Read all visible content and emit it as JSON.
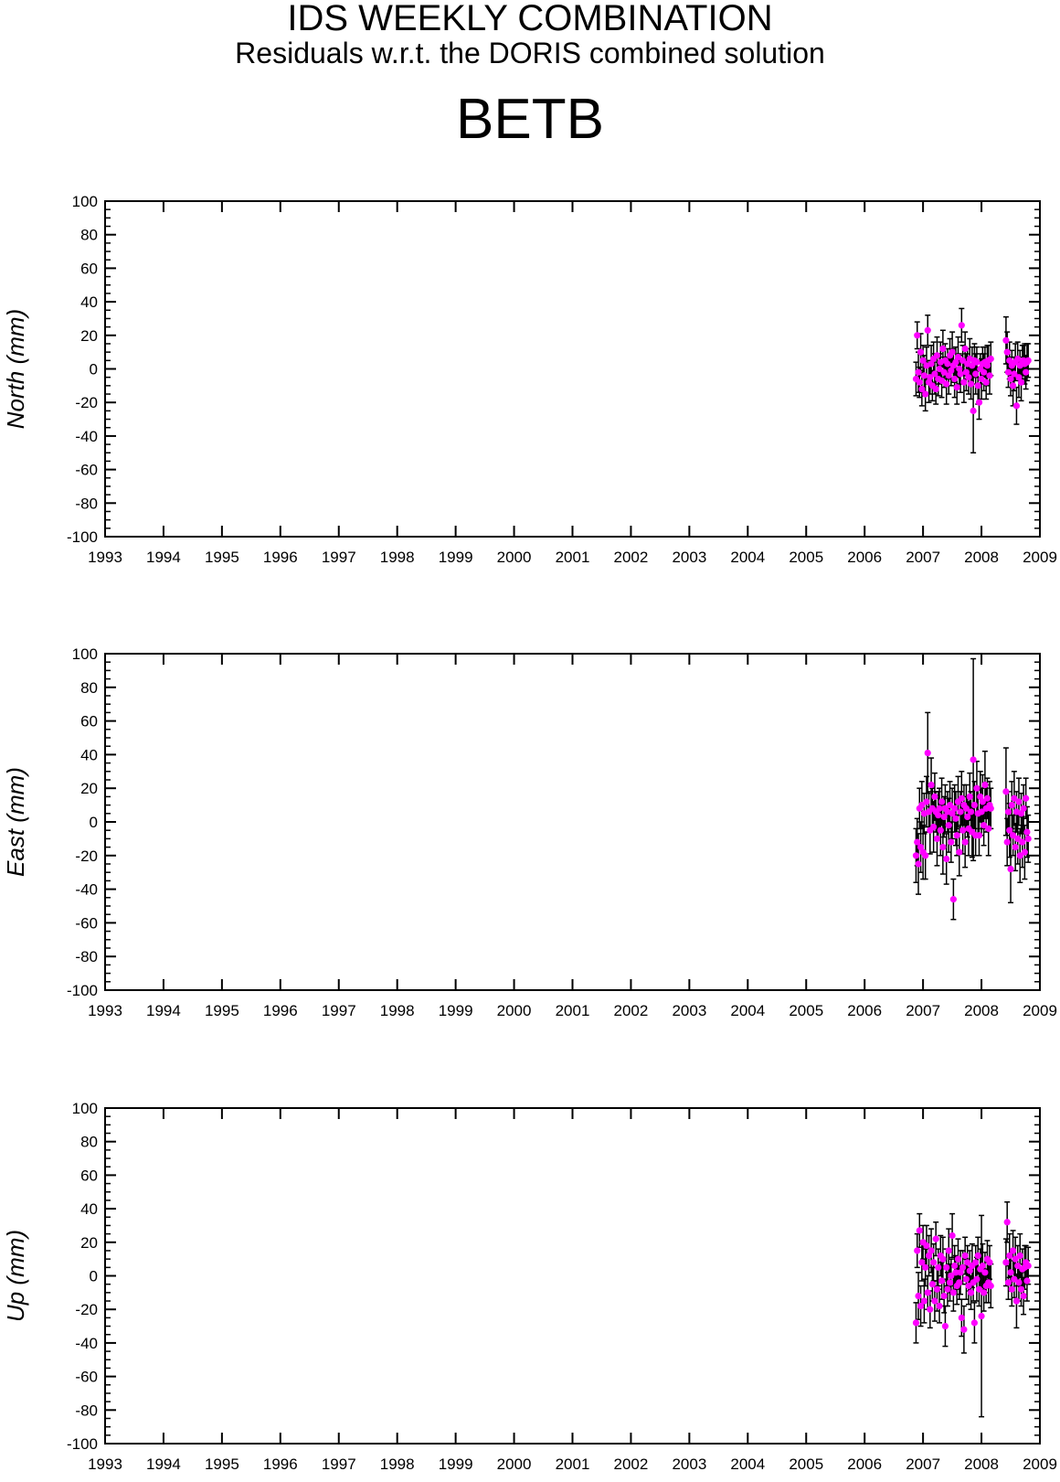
{
  "header": {
    "title": "IDS WEEKLY COMBINATION",
    "subtitle": "Residuals w.r.t. the DORIS combined solution",
    "station": "BETB"
  },
  "colors": {
    "point": "#ff00ff",
    "errorbar": "#000000",
    "axis": "#000000"
  },
  "chart_data": [
    {
      "type": "scatter",
      "ylabel": "North (mm)",
      "xlim": [
        1993,
        2009
      ],
      "ylim": [
        -100,
        100
      ],
      "x_ticks": [
        "1993",
        "1994",
        "1995",
        "1996",
        "1997",
        "1998",
        "1999",
        "2000",
        "2001",
        "2002",
        "2003",
        "2004",
        "2005",
        "2006",
        "2007",
        "2008",
        "2009"
      ],
      "y_ticks": [
        "100",
        "80",
        "60",
        "40",
        "20",
        "0",
        "-20",
        "-40",
        "-60",
        "-80",
        "-100"
      ],
      "series": [
        {
          "x": [
            2006.88,
            2006.9,
            2006.92,
            2006.94,
            2006.96,
            2006.98,
            2007.0,
            2007.02,
            2007.04,
            2007.06,
            2007.08,
            2007.1,
            2007.12,
            2007.14,
            2007.16,
            2007.18,
            2007.2,
            2007.22,
            2007.24,
            2007.26,
            2007.28,
            2007.3,
            2007.32,
            2007.34,
            2007.36,
            2007.38,
            2007.4,
            2007.42,
            2007.44,
            2007.46,
            2007.48,
            2007.5,
            2007.52,
            2007.54,
            2007.56,
            2007.58,
            2007.6,
            2007.62,
            2007.64,
            2007.66,
            2007.68,
            2007.7,
            2007.72,
            2007.74,
            2007.76,
            2007.78,
            2007.8,
            2007.82,
            2007.84,
            2007.86,
            2007.88,
            2007.9,
            2007.92,
            2007.94,
            2007.96,
            2007.98,
            2008.0,
            2008.02,
            2008.04,
            2008.06,
            2008.08,
            2008.1,
            2008.12,
            2008.14,
            2008.16,
            2008.42,
            2008.44,
            2008.46,
            2008.48,
            2008.5,
            2008.52,
            2008.54,
            2008.56,
            2008.58,
            2008.6,
            2008.62,
            2008.64,
            2008.66,
            2008.68,
            2008.7,
            2008.72,
            2008.74,
            2008.76,
            2008.78,
            2008.8
          ],
          "y": [
            -6,
            20,
            -2,
            -8,
            10,
            -12,
            5,
            -4,
            -15,
            2,
            23,
            -8,
            -5,
            3,
            -10,
            6,
            -3,
            -12,
            8,
            -6,
            0,
            4,
            -7,
            12,
            -2,
            5,
            -9,
            3,
            -4,
            8,
            -1,
            10,
            2,
            -6,
            4,
            -11,
            7,
            0,
            -3,
            26,
            5,
            -8,
            12,
            -2,
            3,
            -5,
            6,
            -9,
            2,
            -25,
            5,
            -3,
            4,
            -10,
            -20,
            0,
            -6,
            3,
            -2,
            4,
            -8,
            2,
            5,
            -4,
            6,
            17,
            10,
            -2,
            5,
            -6,
            2,
            -10,
            -3,
            4,
            -22,
            6,
            -5,
            2,
            -8,
            4,
            5,
            3,
            -2,
            4,
            5
          ],
          "err": [
            10,
            8,
            12,
            9,
            11,
            10,
            9,
            12,
            10,
            11,
            9,
            12,
            10,
            11,
            9,
            10,
            12,
            9,
            11,
            10,
            9,
            12,
            10,
            11,
            9,
            10,
            12,
            9,
            11,
            10,
            9,
            12,
            10,
            11,
            9,
            10,
            12,
            9,
            11,
            10,
            9,
            12,
            10,
            11,
            9,
            10,
            12,
            9,
            11,
            25,
            10,
            12,
            9,
            11,
            10,
            9,
            12,
            10,
            11,
            9,
            10,
            12,
            9,
            11,
            10,
            14,
            12,
            9,
            11,
            10,
            9,
            12,
            10,
            11,
            11,
            10,
            12,
            9,
            11,
            10,
            9,
            12,
            10,
            11,
            10
          ]
        }
      ]
    },
    {
      "type": "scatter",
      "ylabel": "East (mm)",
      "xlim": [
        1993,
        2009
      ],
      "ylim": [
        -100,
        100
      ],
      "x_ticks": [
        "1993",
        "1994",
        "1995",
        "1996",
        "1997",
        "1998",
        "1999",
        "2000",
        "2001",
        "2002",
        "2003",
        "2004",
        "2005",
        "2006",
        "2007",
        "2008",
        "2009"
      ],
      "y_ticks": [
        "100",
        "80",
        "60",
        "40",
        "20",
        "0",
        "-20",
        "-40",
        "-60",
        "-80",
        "-100"
      ],
      "series": [
        {
          "x": [
            2006.88,
            2006.9,
            2006.92,
            2006.94,
            2006.96,
            2006.98,
            2007.0,
            2007.02,
            2007.04,
            2007.06,
            2007.08,
            2007.1,
            2007.12,
            2007.14,
            2007.16,
            2007.18,
            2007.2,
            2007.22,
            2007.24,
            2007.26,
            2007.28,
            2007.3,
            2007.32,
            2007.34,
            2007.36,
            2007.38,
            2007.4,
            2007.42,
            2007.44,
            2007.46,
            2007.48,
            2007.5,
            2007.52,
            2007.54,
            2007.56,
            2007.58,
            2007.6,
            2007.62,
            2007.64,
            2007.66,
            2007.68,
            2007.7,
            2007.72,
            2007.74,
            2007.76,
            2007.78,
            2007.8,
            2007.82,
            2007.84,
            2007.86,
            2007.88,
            2007.9,
            2007.92,
            2007.94,
            2007.96,
            2007.98,
            2008.0,
            2008.02,
            2008.04,
            2008.06,
            2008.08,
            2008.1,
            2008.12,
            2008.14,
            2008.16,
            2008.42,
            2008.44,
            2008.46,
            2008.48,
            2008.5,
            2008.52,
            2008.54,
            2008.56,
            2008.58,
            2008.6,
            2008.62,
            2008.64,
            2008.66,
            2008.68,
            2008.7,
            2008.72,
            2008.74,
            2008.76,
            2008.78,
            2008.8
          ],
          "y": [
            -20,
            -12,
            -25,
            8,
            -15,
            10,
            -18,
            5,
            -20,
            12,
            41,
            6,
            -5,
            22,
            8,
            -3,
            15,
            6,
            -10,
            4,
            8,
            -5,
            12,
            -15,
            3,
            8,
            -22,
            6,
            -2,
            10,
            -12,
            5,
            -46,
            8,
            2,
            -8,
            12,
            -18,
            6,
            14,
            -5,
            10,
            -12,
            8,
            3,
            -4,
            15,
            6,
            -6,
            37,
            10,
            -8,
            20,
            5,
            -8,
            15,
            6,
            12,
            -2,
            22,
            8,
            14,
            -4,
            10,
            8,
            18,
            -12,
            6,
            -5,
            -28,
            10,
            -8,
            14,
            -15,
            6,
            -10,
            12,
            -20,
            5,
            -12,
            8,
            -18,
            14,
            -6,
            -10
          ],
          "err": [
            16,
            14,
            18,
            12,
            15,
            14,
            16,
            12,
            14,
            15,
            24,
            12,
            14,
            16,
            12,
            15,
            14,
            12,
            16,
            14,
            12,
            15,
            14,
            16,
            12,
            14,
            15,
            12,
            16,
            14,
            12,
            15,
            12,
            14,
            16,
            12,
            15,
            14,
            12,
            16,
            14,
            12,
            15,
            14,
            12,
            16,
            14,
            12,
            15,
            60,
            14,
            12,
            16,
            14,
            12,
            15,
            14,
            16,
            12,
            20,
            14,
            12,
            16,
            14,
            12,
            26,
            14,
            12,
            16,
            20,
            14,
            12,
            16,
            14,
            12,
            15,
            14,
            16,
            12,
            15,
            14,
            16,
            12,
            15,
            14
          ]
        }
      ]
    },
    {
      "type": "scatter",
      "ylabel": "Up (mm)",
      "xlim": [
        1993,
        2009
      ],
      "ylim": [
        -100,
        100
      ],
      "x_ticks": [
        "1993",
        "1994",
        "1995",
        "1996",
        "1997",
        "1998",
        "1999",
        "2000",
        "2001",
        "2002",
        "2003",
        "2004",
        "2005",
        "2006",
        "2007",
        "2008",
        "2009"
      ],
      "y_ticks": [
        "100",
        "80",
        "60",
        "40",
        "20",
        "0",
        "-20",
        "-40",
        "-60",
        "-80",
        "-100"
      ],
      "series": [
        {
          "x": [
            2006.88,
            2006.9,
            2006.92,
            2006.94,
            2006.96,
            2006.98,
            2007.0,
            2007.02,
            2007.04,
            2007.06,
            2007.08,
            2007.1,
            2007.12,
            2007.14,
            2007.16,
            2007.18,
            2007.2,
            2007.22,
            2007.24,
            2007.26,
            2007.28,
            2007.3,
            2007.32,
            2007.34,
            2007.36,
            2007.38,
            2007.4,
            2007.42,
            2007.44,
            2007.46,
            2007.48,
            2007.5,
            2007.52,
            2007.54,
            2007.56,
            2007.58,
            2007.6,
            2007.62,
            2007.64,
            2007.66,
            2007.68,
            2007.7,
            2007.72,
            2007.74,
            2007.76,
            2007.78,
            2007.8,
            2007.82,
            2007.84,
            2007.86,
            2007.88,
            2007.9,
            2007.92,
            2007.94,
            2007.96,
            2007.98,
            2008.0,
            2008.02,
            2008.04,
            2008.06,
            2008.08,
            2008.1,
            2008.12,
            2008.14,
            2008.16,
            2008.42,
            2008.44,
            2008.46,
            2008.48,
            2008.5,
            2008.52,
            2008.54,
            2008.56,
            2008.58,
            2008.6,
            2008.62,
            2008.64,
            2008.66,
            2008.68,
            2008.7,
            2008.72,
            2008.74,
            2008.76,
            2008.78,
            2008.8
          ],
          "y": [
            -28,
            15,
            -12,
            27,
            -18,
            8,
            20,
            -15,
            5,
            18,
            -10,
            12,
            -20,
            15,
            -5,
            8,
            -15,
            22,
            -8,
            5,
            -18,
            12,
            -3,
            10,
            -12,
            -30,
            5,
            -8,
            15,
            -4,
            0,
            24,
            -10,
            6,
            2,
            -6,
            10,
            -4,
            2,
            -25,
            5,
            -32,
            12,
            -2,
            8,
            -6,
            3,
            -10,
            6,
            -4,
            -28,
            8,
            -2,
            12,
            -8,
            4,
            -24,
            6,
            -10,
            2,
            -6,
            10,
            -4,
            8,
            -6,
            8,
            32,
            -4,
            12,
            2,
            -8,
            15,
            -2,
            10,
            -15,
            6,
            -4,
            12,
            -8,
            4,
            -12,
            5,
            8,
            -3,
            6
          ],
          "err": [
            12,
            10,
            14,
            10,
            12,
            11,
            10,
            13,
            11,
            12,
            10,
            12,
            11,
            13,
            10,
            11,
            12,
            10,
            13,
            11,
            10,
            12,
            11,
            13,
            10,
            12,
            11,
            10,
            13,
            11,
            10,
            13,
            11,
            12,
            10,
            11,
            12,
            10,
            13,
            11,
            10,
            14,
            11,
            12,
            10,
            11,
            12,
            10,
            13,
            11,
            12,
            10,
            13,
            11,
            10,
            12,
            60,
            13,
            11,
            12,
            10,
            11,
            12,
            10,
            13,
            14,
            12,
            10,
            13,
            11,
            10,
            12,
            11,
            13,
            16,
            12,
            11,
            13,
            10,
            12,
            11,
            13,
            10,
            12,
            11
          ]
        }
      ]
    }
  ]
}
